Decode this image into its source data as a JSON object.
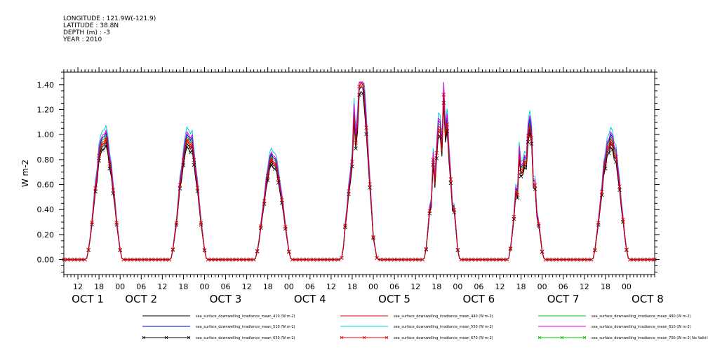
{
  "header": {
    "lines": [
      "LONGITUDE : 121.9W(-121.9)",
      "LATITUDE : 38.8N",
      "DEPTH (m) : -3",
      "YEAR : 2010"
    ]
  },
  "chart_data": {
    "type": "line",
    "title": "",
    "ylabel": "W m-2",
    "ylim": [
      -0.12,
      1.5
    ],
    "y_ticks": [
      0.0,
      0.2,
      0.4,
      0.6,
      0.8,
      1.0,
      1.2,
      1.4
    ],
    "y_tick_labels": [
      "0.00",
      "0.20",
      "0.40",
      "0.60",
      "0.80",
      "1.00",
      "1.20",
      "1.40"
    ],
    "x_unit": "hour",
    "xlim": [
      8,
      176
    ],
    "x_hour_ticks": [
      12,
      18,
      24,
      30,
      36,
      42,
      48,
      54,
      60,
      66,
      72,
      78,
      84,
      90,
      96,
      102,
      108,
      114,
      120,
      126,
      132,
      138,
      144,
      150,
      156,
      162,
      168
    ],
    "x_hour_tick_labels": [
      "12",
      "18",
      "00",
      "06",
      "12",
      "18",
      "00",
      "06",
      "12",
      "18",
      "00",
      "06",
      "12",
      "18",
      "00",
      "06",
      "12",
      "18",
      "00",
      "06",
      "12",
      "18",
      "00",
      "06",
      "12",
      "18",
      "00"
    ],
    "x_date_ticks": [
      24,
      48,
      72,
      96,
      120,
      144,
      168
    ],
    "x_date_labels": [
      "OCT 1",
      "OCT 2",
      "OCT 3",
      "OCT 4",
      "OCT 5",
      "OCT 6",
      "OCT 7",
      "OCT 8"
    ],
    "grid": false,
    "legend_position": "bottom",
    "day_peaks": {
      "x_peak_hours": [
        19.5,
        43.5,
        67.5,
        92.0,
        115.5,
        139.5,
        163.5
      ],
      "peak_values_410": [
        0.95,
        0.95,
        0.8,
        1.3,
        1.15,
        1.05,
        0.95
      ]
    },
    "series": [
      {
        "name": "sea_surface_downwelling_irradiance_mean_410 (W m-2)",
        "color": "#000000",
        "scale": 1.0,
        "marker": "none"
      },
      {
        "name": "sea_surface_downwelling_irradiance_mean_440 (W m-2)",
        "color": "#e00000",
        "scale": 1.04,
        "marker": "none"
      },
      {
        "name": "sea_surface_downwelling_irradiance_mean_490 (W m-2)",
        "color": "#00c000",
        "scale": 1.06,
        "marker": "none"
      },
      {
        "name": "sea_surface_downwelling_irradiance_mean_510 (W m-2)",
        "color": "#0000e0",
        "scale": 1.08,
        "marker": "none"
      },
      {
        "name": "sea_surface_downwelling_irradiance_mean_550 (W m-2)",
        "color": "#00d0d0",
        "scale": 1.14,
        "marker": "none"
      },
      {
        "name": "sea_surface_downwelling_irradiance_mean_610 (W m-2)",
        "color": "#e000e0",
        "scale": 1.1,
        "marker": "none"
      },
      {
        "name": "sea_surface_downwelling_irradiance_mean_650 (W m-2)",
        "color": "#000000",
        "scale": 0.97,
        "marker": "x"
      },
      {
        "name": "sea_surface_downwelling_irradiance_mean_670 (W m-2)",
        "color": "#e00000",
        "scale": 1.02,
        "marker": "x"
      },
      {
        "name": "sea_surface_downwelling_irradiance_mean_700 (W m-2) No Valid Data",
        "color": "#00c000",
        "scale": 0.0,
        "marker": "x"
      }
    ]
  }
}
